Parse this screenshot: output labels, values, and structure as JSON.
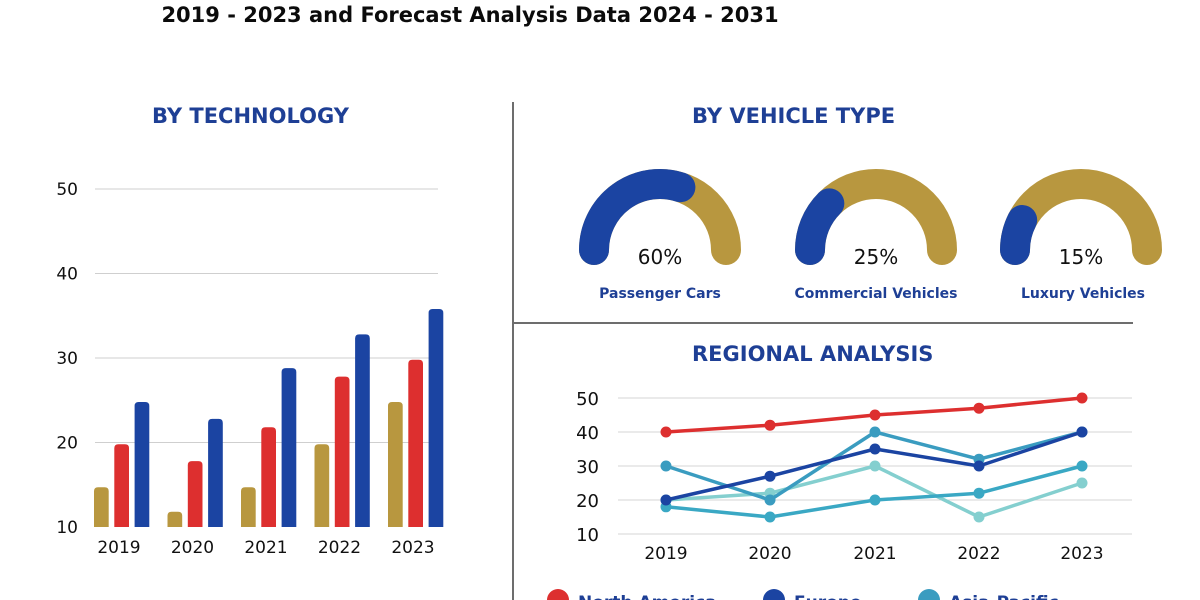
{
  "header": {
    "title": "2019 - 2023 and Forecast Analysis Data 2024 - 2031"
  },
  "sections": {
    "technology": "BY TECHNOLOGY",
    "vehicle_type": "BY VEHICLE TYPE",
    "regional": "REGIONAL ANALYSIS"
  },
  "colors": {
    "gold": "#b8973f",
    "red": "#dd2f2f",
    "blue": "#1b44a2",
    "teal": "#3a9cc0",
    "lightteal": "#84cfcf"
  },
  "chart_data": [
    {
      "type": "bar",
      "title": "BY TECHNOLOGY",
      "categories": [
        "2019",
        "2020",
        "2021",
        "2022",
        "2023"
      ],
      "yticks": [
        "10",
        "20",
        "30",
        "40",
        "50"
      ],
      "ylim": [
        10,
        50
      ],
      "grid": true,
      "series": [
        {
          "name": "gold",
          "color": "#b8973f",
          "values": [
            14.7,
            11.8,
            14.7,
            19.8,
            24.8
          ]
        },
        {
          "name": "red",
          "color": "#dd2f2f",
          "values": [
            19.8,
            17.8,
            21.8,
            27.8,
            29.8
          ]
        },
        {
          "name": "blue",
          "color": "#1b44a2",
          "values": [
            24.8,
            22.8,
            28.8,
            32.8,
            35.8
          ]
        }
      ]
    },
    {
      "type": "pie",
      "title": "BY VEHICLE TYPE",
      "slices": [
        {
          "label": "Passenger Cars",
          "value": 60,
          "text": "60%"
        },
        {
          "label": "Commercial Vehicles",
          "value": 25,
          "text": "25%"
        },
        {
          "label": "Luxury Vehicles",
          "value": 15,
          "text": "15%"
        }
      ]
    },
    {
      "type": "line",
      "title": "REGIONAL ANALYSIS",
      "x": [
        "2019",
        "2020",
        "2021",
        "2022",
        "2023"
      ],
      "yticks": [
        "10",
        "20",
        "30",
        "40",
        "50"
      ],
      "ylim": [
        10,
        50
      ],
      "grid": true,
      "series": [
        {
          "name": "North America",
          "color": "#dd2f2f",
          "values": [
            40,
            42,
            45,
            47,
            50
          ]
        },
        {
          "name": "Europe",
          "color": "#1b44a2",
          "values": [
            20,
            27,
            35,
            30,
            40
          ]
        },
        {
          "name": "Asia-Pacific",
          "color": "#3a9cc0",
          "values": [
            30,
            20,
            40,
            32,
            40
          ]
        },
        {
          "name": "Teal",
          "color": "#3aa8c4",
          "values": [
            18,
            15,
            20,
            22,
            30
          ]
        },
        {
          "name": "Light teal",
          "color": "#84cfcf",
          "values": [
            20,
            22,
            30,
            15,
            25
          ]
        }
      ],
      "legend": [
        "North America",
        "Europe",
        "Asia-Pacific"
      ]
    }
  ]
}
